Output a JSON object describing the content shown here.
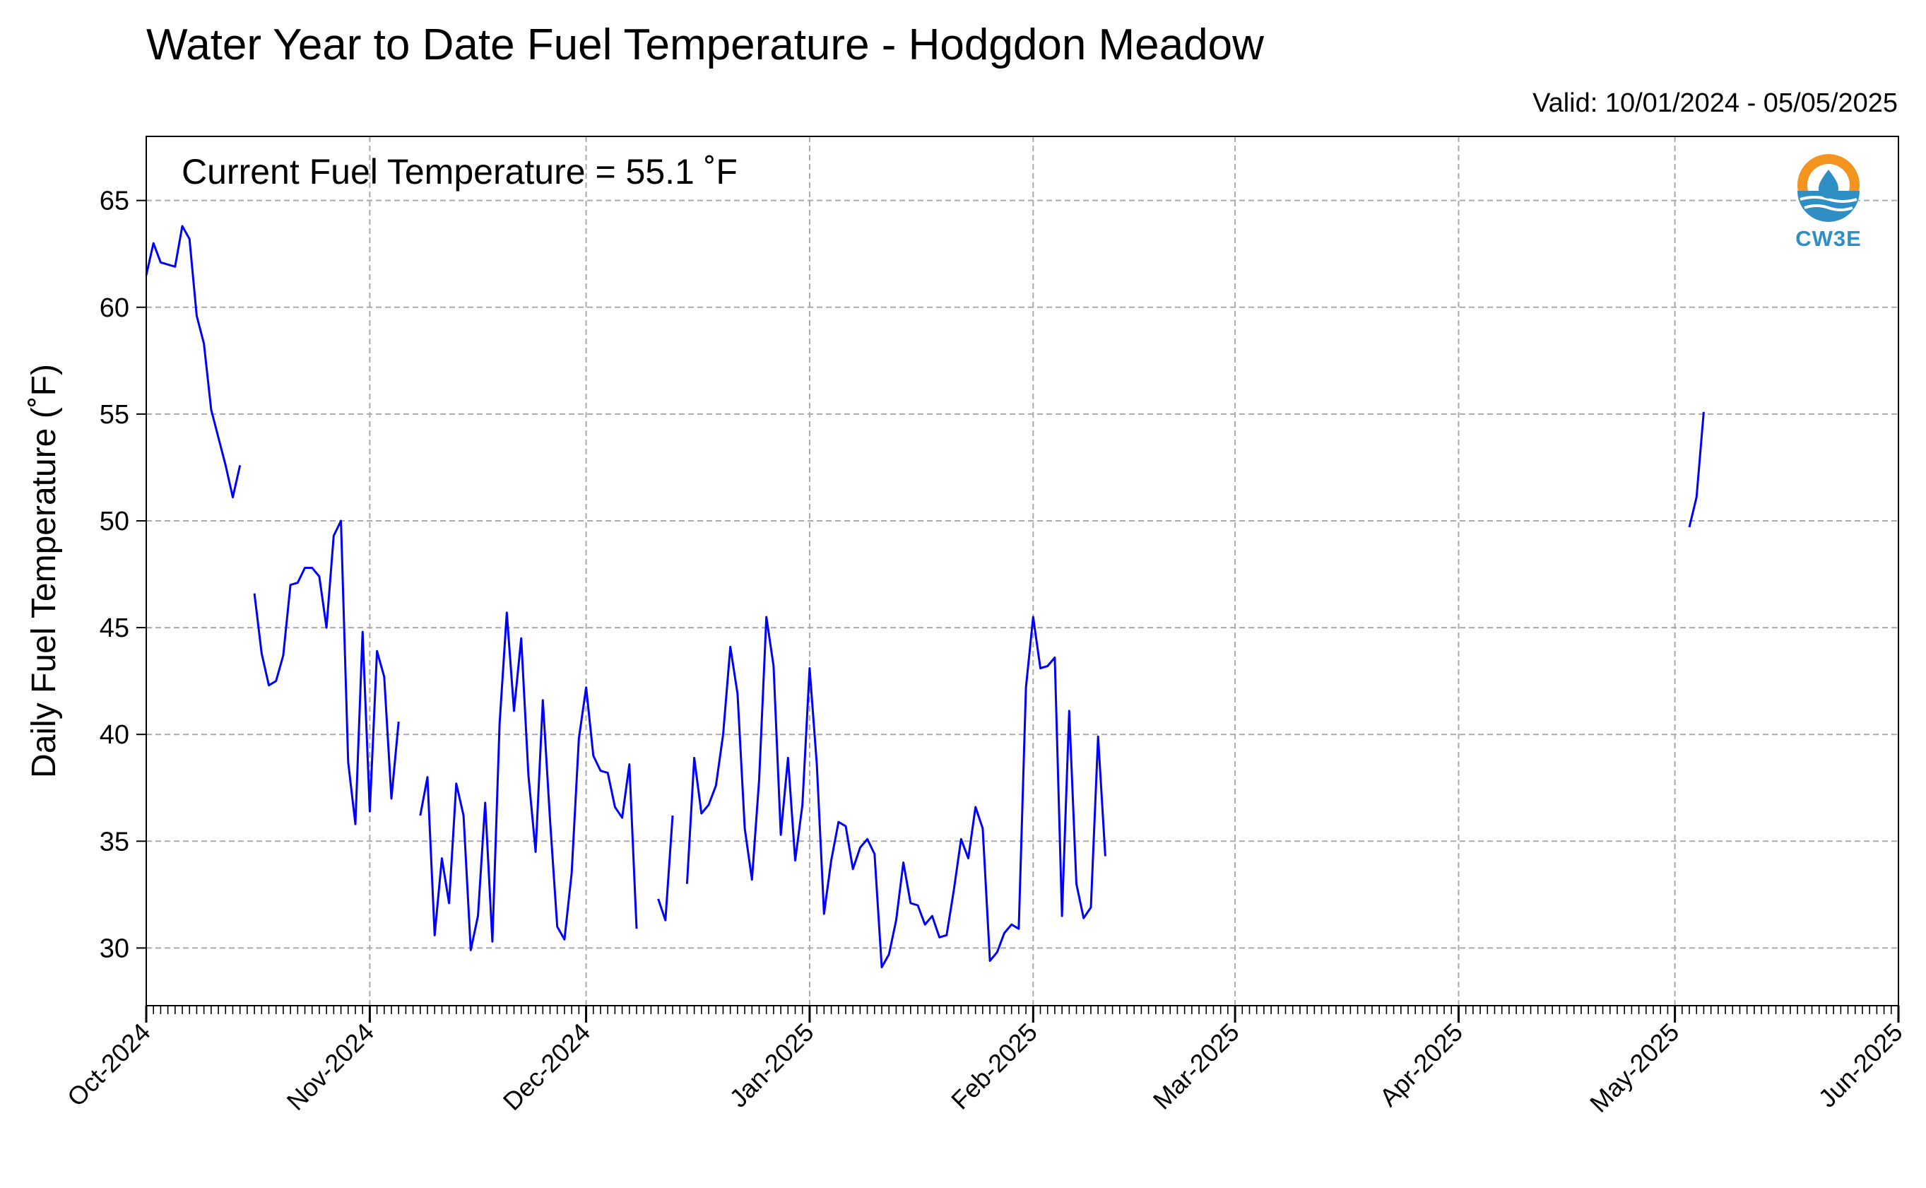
{
  "chart_data": {
    "type": "line",
    "title": "Water Year to Date Fuel Temperature - Hodgdon Meadow",
    "subtitle": "Valid: 10/01/2024 - 05/05/2025",
    "annotation": "Current Fuel Temperature = 55.1 ˚F",
    "ylabel": "Daily Fuel Temperature (˚F)",
    "xlabel": "",
    "ylim": [
      27.3,
      68.0
    ],
    "xlim": [
      "2024-10-01",
      "2025-06-01"
    ],
    "grid": true,
    "series_color": "#0000ff",
    "y_ticks": [
      {
        "value": 30,
        "label": "30"
      },
      {
        "value": 35,
        "label": "35"
      },
      {
        "value": 40,
        "label": "40"
      },
      {
        "value": 45,
        "label": "45"
      },
      {
        "value": 50,
        "label": "50"
      },
      {
        "value": 55,
        "label": "55"
      },
      {
        "value": 60,
        "label": "60"
      },
      {
        "value": 65,
        "label": "65"
      }
    ],
    "x_ticks": [
      {
        "date": "2024-10-01",
        "label": "Oct-2024"
      },
      {
        "date": "2024-11-01",
        "label": "Nov-2024"
      },
      {
        "date": "2024-12-01",
        "label": "Dec-2024"
      },
      {
        "date": "2025-01-01",
        "label": "Jan-2025"
      },
      {
        "date": "2025-02-01",
        "label": "Feb-2025"
      },
      {
        "date": "2025-03-01",
        "label": "Mar-2025"
      },
      {
        "date": "2025-04-01",
        "label": "Apr-2025"
      },
      {
        "date": "2025-05-01",
        "label": "May-2025"
      },
      {
        "date": "2025-06-01",
        "label": "Jun-2025"
      }
    ],
    "segments": [
      {
        "start": "2024-10-01",
        "values": [
          61.5,
          63.0,
          62.1,
          62.0,
          61.9,
          63.8,
          63.2,
          59.6,
          58.3,
          55.2,
          53.9,
          52.6,
          51.1,
          52.6
        ]
      },
      {
        "start": "2024-10-16",
        "values": [
          46.6,
          43.8,
          42.3,
          42.5,
          43.7,
          47.0,
          47.1,
          47.8,
          47.8,
          47.4,
          45.0,
          49.3,
          50.0,
          38.7,
          35.8,
          44.8,
          36.4,
          43.9,
          42.7,
          37.0,
          40.6
        ]
      },
      {
        "start": "2024-11-08",
        "values": [
          36.2,
          38.0,
          30.6,
          34.2,
          32.1,
          37.7,
          36.2,
          29.9,
          31.5,
          36.8,
          30.3,
          40.5,
          45.7,
          41.1,
          44.5,
          38.1,
          34.5,
          41.6,
          36.0,
          31.0,
          30.4,
          33.5,
          39.8,
          42.2,
          39.0,
          38.3,
          38.2,
          36.6,
          36.1,
          38.6,
          30.9
        ]
      },
      {
        "start": "2024-12-11",
        "values": [
          32.3,
          31.3,
          36.2
        ]
      },
      {
        "start": "2024-12-15",
        "values": [
          33.0,
          38.9,
          36.3,
          36.7,
          37.6,
          40.0,
          44.1,
          41.9,
          35.6,
          33.2,
          37.9,
          45.5,
          43.2,
          35.3,
          38.9,
          34.1,
          36.7,
          43.1,
          38.6,
          31.6,
          34.1,
          35.9,
          35.7,
          33.7,
          34.7,
          35.1,
          34.4,
          29.1,
          29.7,
          31.3,
          34.0,
          32.1,
          32.0,
          31.1,
          31.5,
          30.5,
          30.6,
          32.7,
          35.1,
          34.2,
          36.6,
          35.6,
          29.4,
          29.8,
          30.7,
          31.1,
          30.9,
          42.2,
          45.5,
          43.1,
          43.2,
          43.6,
          31.5,
          41.1,
          33.0,
          31.4,
          31.9,
          39.9,
          34.3
        ]
      }
    ],
    "series_end": {
      "start": "2025-05-03",
      "values": [
        49.7,
        51.1,
        55.1
      ]
    }
  },
  "logo": {
    "text": "CW3E",
    "ring_color": "#f2941e",
    "water_color": "#2f8fc4"
  }
}
